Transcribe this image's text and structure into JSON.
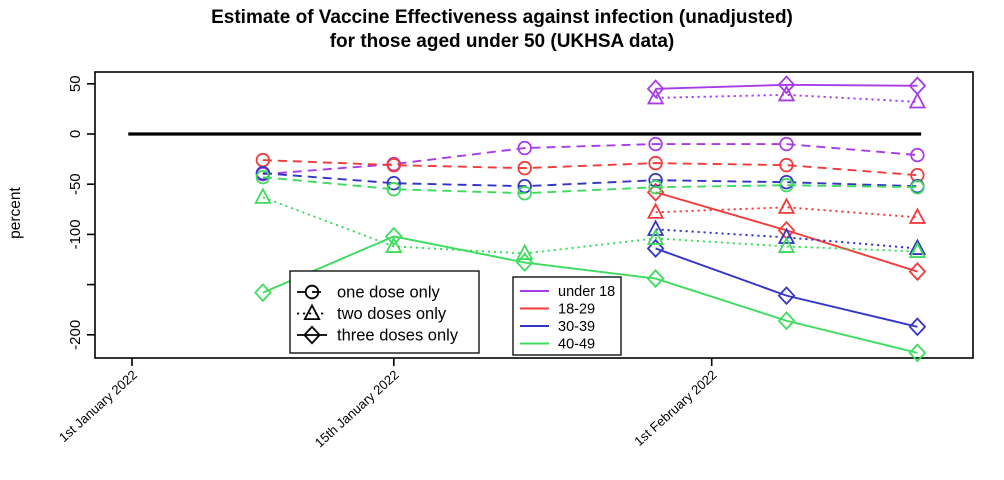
{
  "chart_data": {
    "type": "line",
    "title": "Estimate of Vaccine Effectiveness against infection (unadjusted)",
    "subtitle": "for those aged under 50 (UKHSA data)",
    "ylabel": "percent",
    "x_axis": {
      "tick_labels": [
        "1st January 2022",
        "15th January 2022",
        "1st February 2022"
      ],
      "tick_days": [
        0,
        14,
        31
      ]
    },
    "y_axis": {
      "ticks": [
        50,
        0,
        -50,
        -100,
        -150,
        -200
      ],
      "labeled_ticks": [
        50,
        0,
        -50,
        -100,
        -200
      ],
      "ylim": [
        -225,
        62
      ]
    },
    "x_days": [
      7,
      14,
      21,
      28,
      35,
      42
    ],
    "zero_line": {
      "value": 0,
      "start_day": -0.2,
      "end_day": 42.2,
      "color": "#000000"
    },
    "age_colors": {
      "under 18": "#A73CE8",
      "18-29": "#F23B3B",
      "30-39": "#3434C8",
      "40-49": "#3EDC5E"
    },
    "dose_styles": {
      "one dose only": {
        "line": "dashed",
        "marker": "circle"
      },
      "two doses only": {
        "line": "dotted",
        "marker": "triangle"
      },
      "three doses only": {
        "line": "solid",
        "marker": "diamond"
      }
    },
    "series": [
      {
        "age": "under 18",
        "dose": "one dose only",
        "values": [
          -40,
          -30,
          -14,
          -10,
          -10,
          -21
        ]
      },
      {
        "age": "under 18",
        "dose": "two doses only",
        "values": [
          null,
          null,
          null,
          36,
          39,
          32
        ]
      },
      {
        "age": "under 18",
        "dose": "three doses only",
        "values": [
          null,
          null,
          null,
          45,
          49,
          48
        ]
      },
      {
        "age": "18-29",
        "dose": "one dose only",
        "values": [
          -26,
          -31,
          -34,
          -29,
          -31,
          -41
        ]
      },
      {
        "age": "18-29",
        "dose": "two doses only",
        "values": [
          null,
          null,
          null,
          -78,
          -73,
          -83
        ]
      },
      {
        "age": "18-29",
        "dose": "three doses only",
        "values": [
          null,
          null,
          null,
          -58,
          -96,
          -137
        ]
      },
      {
        "age": "30-39",
        "dose": "one dose only",
        "values": [
          -39,
          -49,
          -52,
          -46,
          -48,
          -52
        ]
      },
      {
        "age": "30-39",
        "dose": "two doses only",
        "values": [
          null,
          null,
          null,
          -95,
          -103,
          -114
        ]
      },
      {
        "age": "30-39",
        "dose": "three doses only",
        "values": [
          null,
          null,
          null,
          -114,
          -161,
          -192
        ]
      },
      {
        "age": "40-49",
        "dose": "one dose only",
        "values": [
          -43,
          -55,
          -59,
          -53,
          -51,
          -53
        ]
      },
      {
        "age": "40-49",
        "dose": "two doses only",
        "values": [
          -63,
          -112,
          -119,
          -104,
          -112,
          -117
        ]
      },
      {
        "age": "40-49",
        "dose": "three doses only",
        "values": [
          -158,
          -102,
          -128,
          -144,
          -186,
          -218
        ]
      }
    ],
    "legend_doses": [
      "one dose only",
      "two doses only",
      "three doses only"
    ],
    "legend_ages": [
      "under 18",
      "18-29",
      "30-39",
      "40-49"
    ]
  }
}
